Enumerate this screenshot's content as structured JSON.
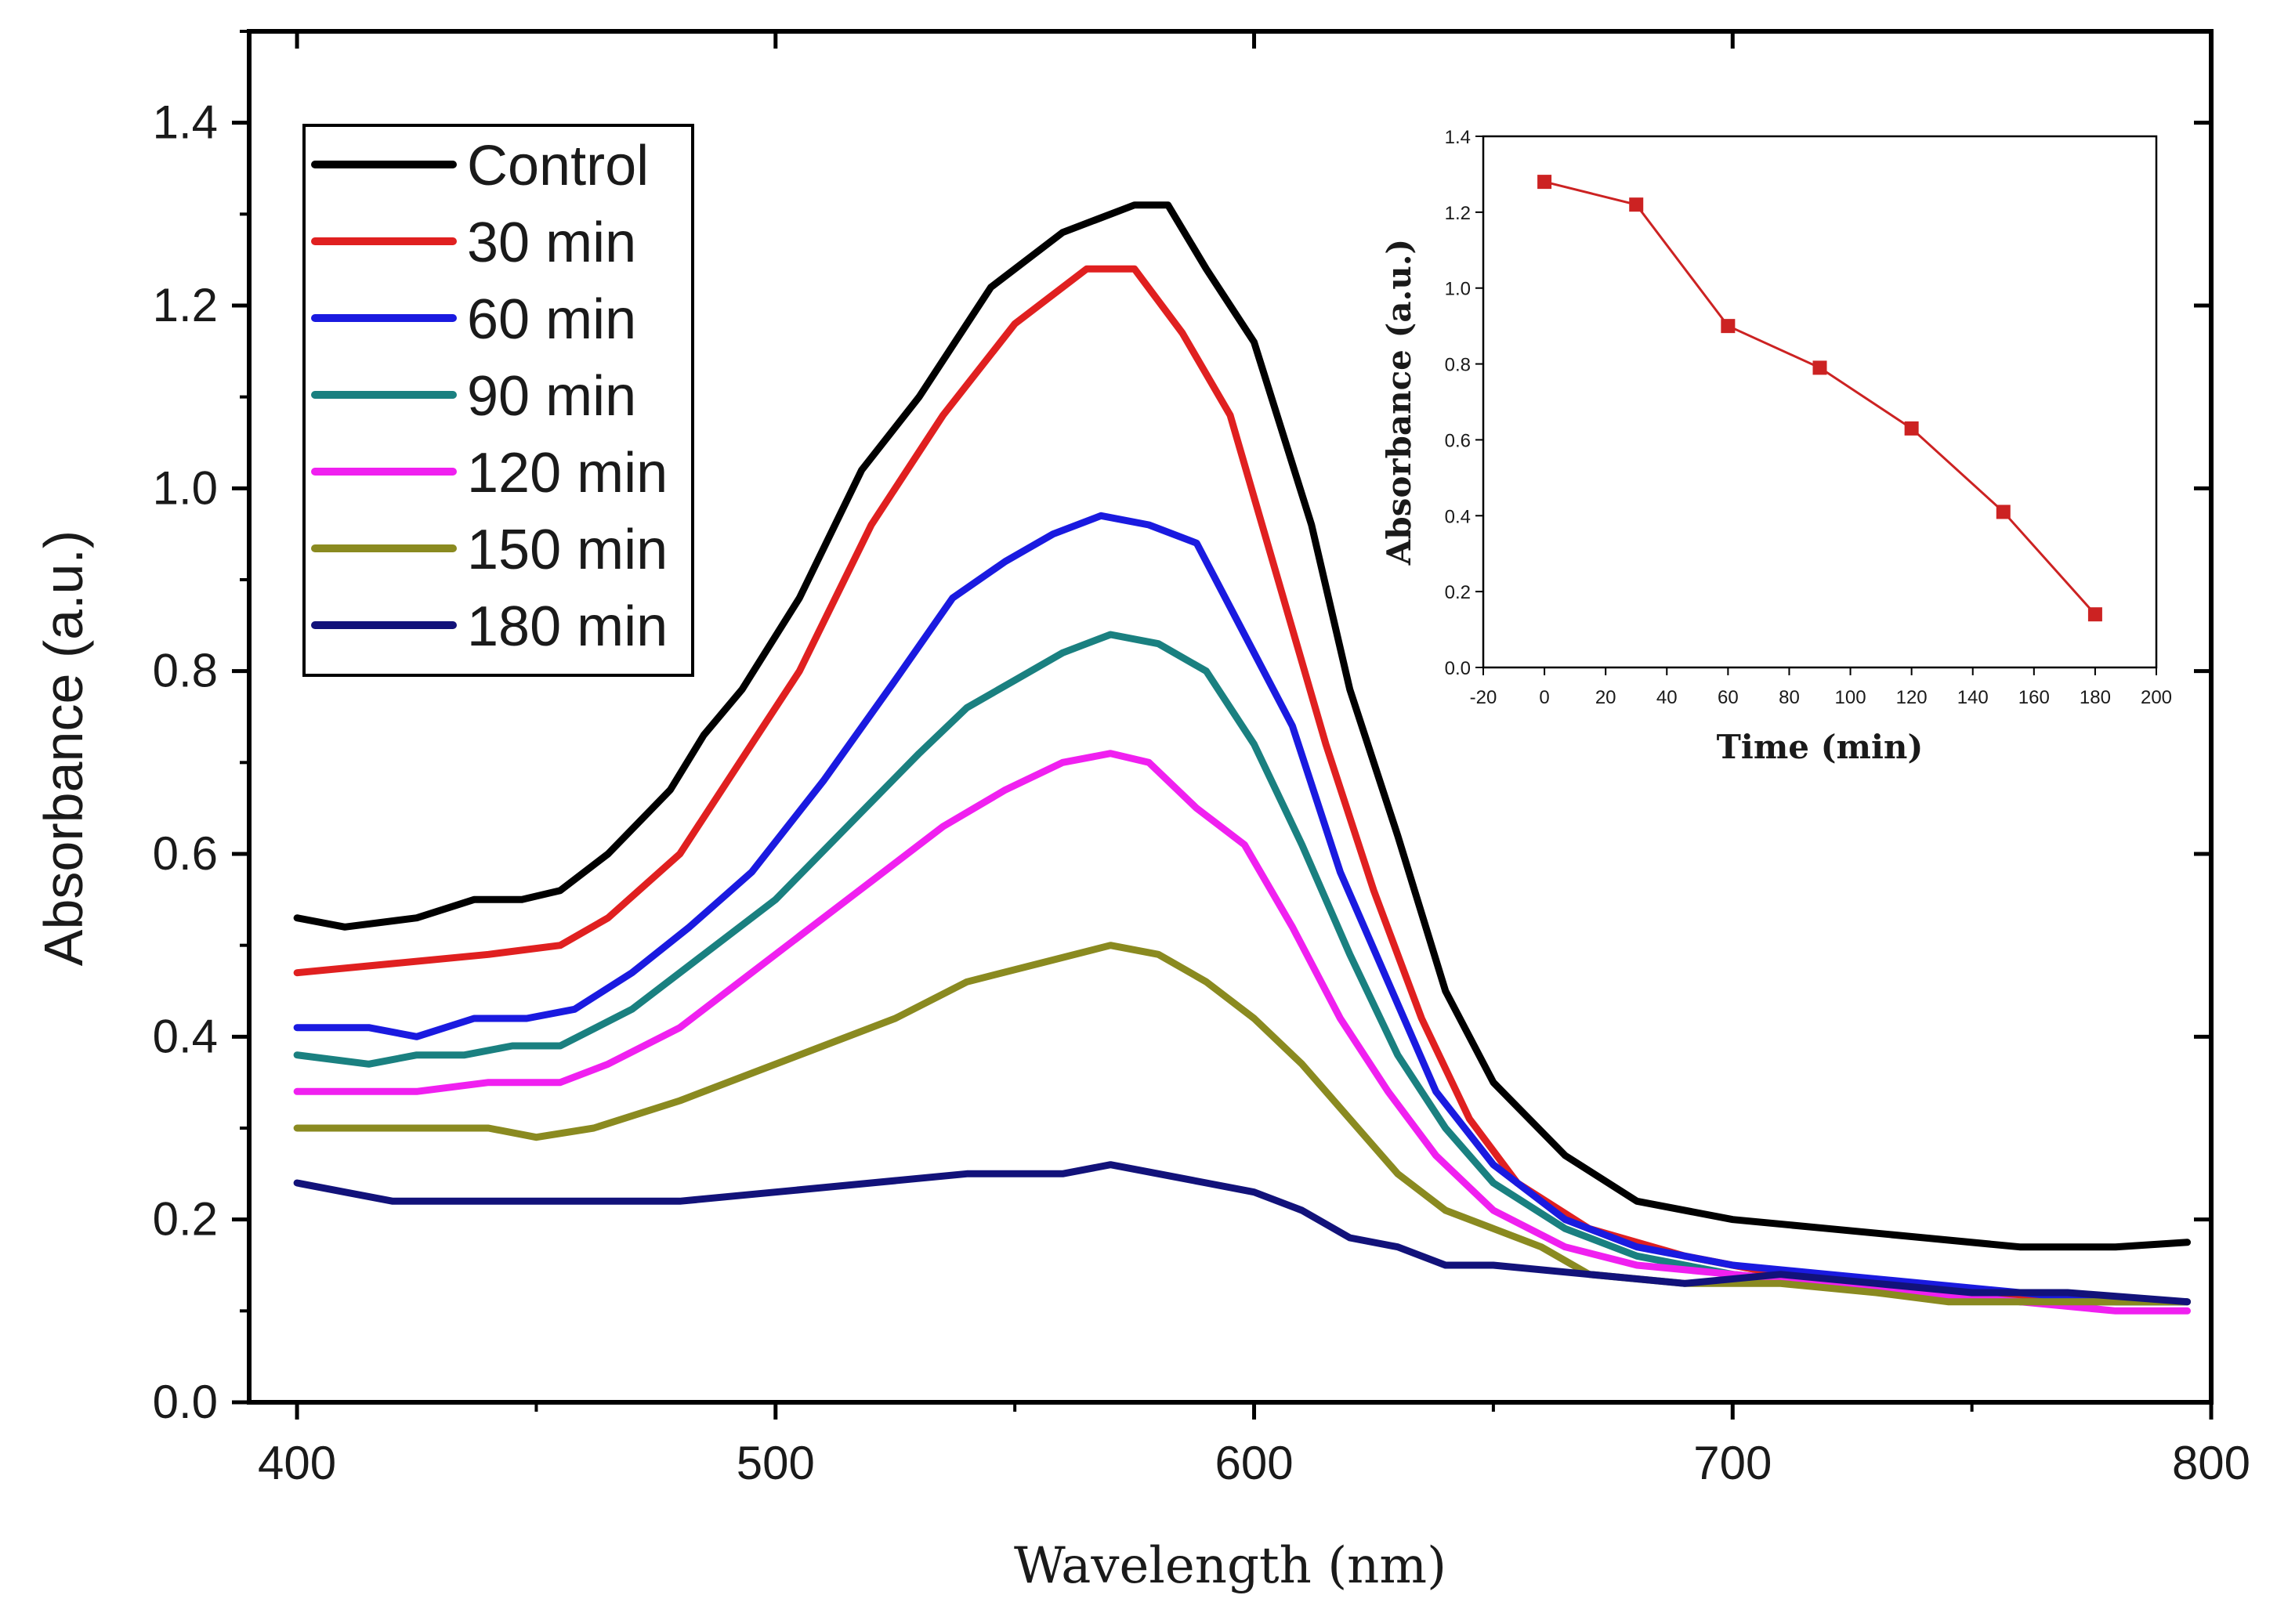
{
  "chart_data": [
    {
      "type": "line",
      "title": "",
      "xlabel": "Wavelength (nm)",
      "ylabel": "Absorbance (a.u.)",
      "xlim": [
        390,
        800
      ],
      "ylim": [
        0.0,
        1.5
      ],
      "xticks": [
        400,
        500,
        600,
        700,
        800
      ],
      "yticks": [
        0.0,
        0.2,
        0.4,
        0.6,
        0.8,
        1.0,
        1.2,
        1.4
      ],
      "xtick_labels": [
        "400",
        "500",
        "600",
        "700",
        "800"
      ],
      "ytick_labels": [
        "0.0",
        "0.2",
        "0.4",
        "0.6",
        "0.8",
        "1.0",
        "1.2",
        "1.4"
      ],
      "legend_position": "top-left",
      "series": [
        {
          "name": "Control",
          "color": "#000000",
          "x": [
            400,
            410,
            425,
            437,
            447,
            455,
            465,
            478,
            485,
            493,
            505,
            518,
            530,
            545,
            560,
            575,
            582,
            590,
            600,
            612,
            620,
            630,
            640,
            650,
            665,
            680,
            700,
            720,
            740,
            760,
            780,
            795
          ],
          "y": [
            0.53,
            0.52,
            0.53,
            0.55,
            0.55,
            0.56,
            0.6,
            0.67,
            0.73,
            0.78,
            0.88,
            1.02,
            1.1,
            1.22,
            1.28,
            1.31,
            1.31,
            1.24,
            1.16,
            0.96,
            0.78,
            0.62,
            0.45,
            0.35,
            0.27,
            0.22,
            0.2,
            0.19,
            0.18,
            0.17,
            0.17,
            0.175
          ]
        },
        {
          "name": "30 min",
          "color": "#e02020",
          "x": [
            400,
            420,
            440,
            455,
            465,
            480,
            490,
            505,
            520,
            535,
            550,
            565,
            575,
            585,
            595,
            605,
            615,
            625,
            635,
            645,
            655,
            670,
            690,
            710,
            730,
            750,
            770,
            795
          ],
          "y": [
            0.47,
            0.48,
            0.49,
            0.5,
            0.53,
            0.6,
            0.68,
            0.8,
            0.96,
            1.08,
            1.18,
            1.24,
            1.24,
            1.17,
            1.08,
            0.9,
            0.72,
            0.56,
            0.42,
            0.31,
            0.24,
            0.19,
            0.16,
            0.14,
            0.13,
            0.12,
            0.11,
            0.11
          ]
        },
        {
          "name": "60 min",
          "color": "#1a1ae0",
          "x": [
            400,
            415,
            425,
            437,
            448,
            458,
            470,
            482,
            495,
            510,
            525,
            537,
            548,
            558,
            568,
            578,
            588,
            598,
            608,
            618,
            628,
            638,
            650,
            665,
            680,
            700,
            720,
            740,
            760,
            780,
            795
          ],
          "y": [
            0.41,
            0.41,
            0.4,
            0.42,
            0.42,
            0.43,
            0.47,
            0.52,
            0.58,
            0.68,
            0.79,
            0.88,
            0.92,
            0.95,
            0.97,
            0.96,
            0.94,
            0.84,
            0.74,
            0.58,
            0.46,
            0.34,
            0.26,
            0.2,
            0.17,
            0.15,
            0.14,
            0.13,
            0.12,
            0.11,
            0.11
          ]
        },
        {
          "name": "90 min",
          "color": "#1a8080",
          "x": [
            400,
            415,
            425,
            435,
            445,
            455,
            470,
            485,
            500,
            515,
            530,
            540,
            550,
            560,
            570,
            580,
            590,
            600,
            610,
            620,
            630,
            640,
            650,
            665,
            680,
            700,
            720,
            740,
            760,
            780,
            795
          ],
          "y": [
            0.38,
            0.37,
            0.38,
            0.38,
            0.39,
            0.39,
            0.43,
            0.49,
            0.55,
            0.63,
            0.71,
            0.76,
            0.79,
            0.82,
            0.84,
            0.83,
            0.8,
            0.72,
            0.61,
            0.49,
            0.38,
            0.3,
            0.24,
            0.19,
            0.16,
            0.14,
            0.13,
            0.12,
            0.11,
            0.11,
            0.11
          ]
        },
        {
          "name": "120 min",
          "color": "#f020f0",
          "x": [
            400,
            425,
            440,
            455,
            465,
            480,
            490,
            505,
            520,
            535,
            548,
            560,
            570,
            578,
            588,
            598,
            608,
            618,
            628,
            638,
            650,
            665,
            680,
            700,
            720,
            740,
            760,
            780,
            795
          ],
          "y": [
            0.34,
            0.34,
            0.35,
            0.35,
            0.37,
            0.41,
            0.45,
            0.51,
            0.57,
            0.63,
            0.67,
            0.7,
            0.71,
            0.7,
            0.65,
            0.61,
            0.52,
            0.42,
            0.34,
            0.27,
            0.21,
            0.17,
            0.15,
            0.14,
            0.13,
            0.12,
            0.11,
            0.1,
            0.1
          ]
        },
        {
          "name": "150 min",
          "color": "#8a8a20",
          "x": [
            400,
            420,
            440,
            450,
            462,
            480,
            495,
            510,
            525,
            540,
            555,
            570,
            580,
            590,
            600,
            610,
            620,
            630,
            640,
            650,
            660,
            670,
            690,
            710,
            730,
            745,
            760,
            780,
            795
          ],
          "y": [
            0.3,
            0.3,
            0.3,
            0.29,
            0.3,
            0.33,
            0.36,
            0.39,
            0.42,
            0.46,
            0.48,
            0.5,
            0.49,
            0.46,
            0.42,
            0.37,
            0.31,
            0.25,
            0.21,
            0.19,
            0.17,
            0.14,
            0.13,
            0.13,
            0.12,
            0.11,
            0.11,
            0.11,
            0.11
          ]
        },
        {
          "name": "180 min",
          "color": "#12127a",
          "x": [
            400,
            410,
            420,
            440,
            460,
            480,
            500,
            520,
            540,
            560,
            570,
            580,
            590,
            600,
            610,
            620,
            630,
            640,
            650,
            670,
            690,
            710,
            730,
            750,
            770,
            795
          ],
          "y": [
            0.24,
            0.23,
            0.22,
            0.22,
            0.22,
            0.22,
            0.23,
            0.24,
            0.25,
            0.25,
            0.26,
            0.25,
            0.24,
            0.23,
            0.21,
            0.18,
            0.17,
            0.15,
            0.15,
            0.14,
            0.13,
            0.14,
            0.13,
            0.12,
            0.12,
            0.11
          ]
        }
      ]
    },
    {
      "type": "line",
      "title": "",
      "xlabel": "Time (min)",
      "ylabel": "Absorbance (a.u.)",
      "xlim": [
        -20,
        200
      ],
      "ylim": [
        0.0,
        1.4
      ],
      "xticks": [
        -20,
        0,
        20,
        40,
        60,
        80,
        100,
        120,
        140,
        160,
        180,
        200
      ],
      "yticks": [
        0.0,
        0.2,
        0.4,
        0.6,
        0.8,
        1.0,
        1.2,
        1.4
      ],
      "xtick_labels": [
        "-20",
        "0",
        "20",
        "40",
        "60",
        "80",
        "100",
        "120",
        "140",
        "160",
        "180",
        "200"
      ],
      "ytick_labels": [
        "0.0",
        "0.2",
        "0.4",
        "0.6",
        "0.8",
        "1.0",
        "1.2",
        "1.4"
      ],
      "color": "#cc2222",
      "x": [
        0,
        30,
        60,
        90,
        120,
        150,
        180
      ],
      "y": [
        1.28,
        1.22,
        0.9,
        0.79,
        0.63,
        0.41,
        0.14
      ]
    }
  ]
}
